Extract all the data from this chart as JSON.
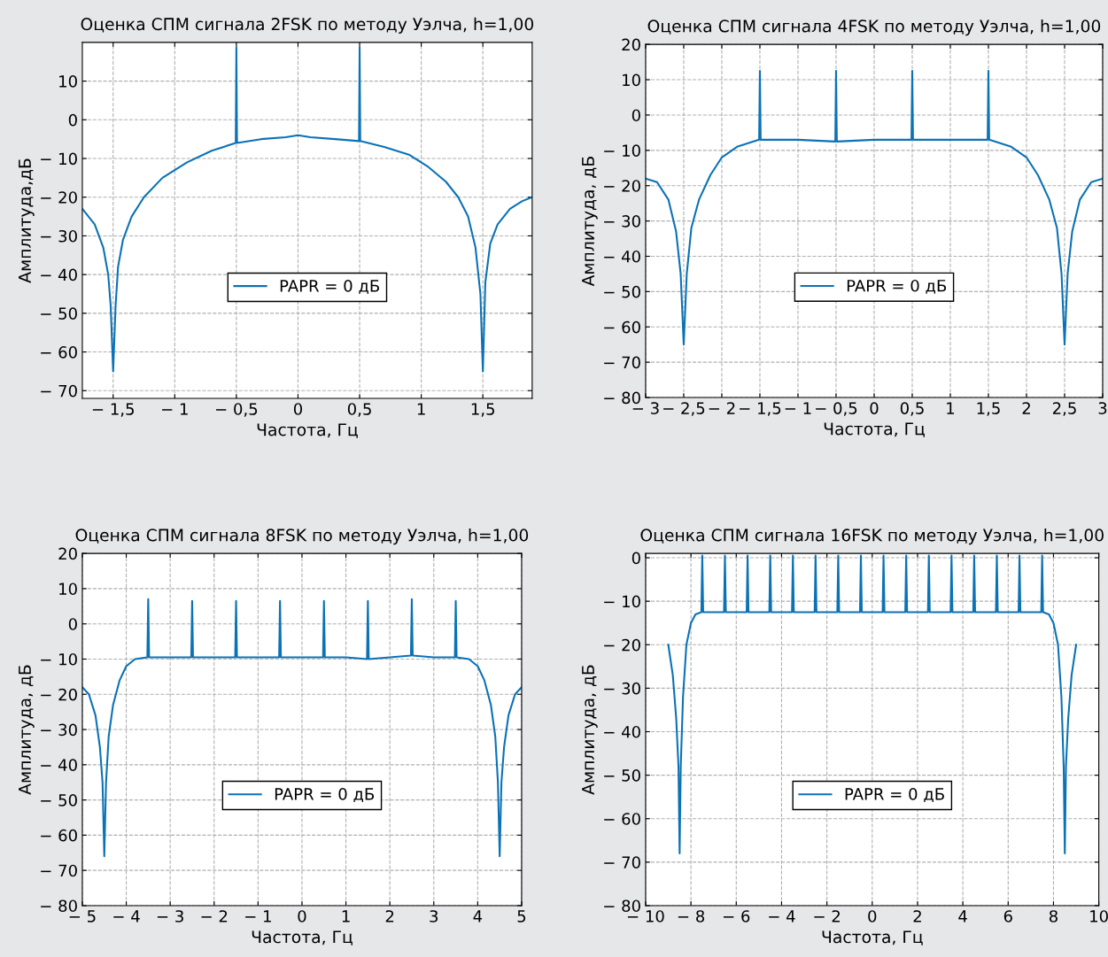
{
  "chart_data": [
    {
      "type": "line",
      "title": "Оценка СПМ сигнала 2FSK по методу Уэлча, h=1,00",
      "xlabel": "Частота, Гц",
      "ylabel": "Амплитуда,дБ",
      "grid": true,
      "legend": "bottom",
      "xlim": [
        -1.75,
        1.9
      ],
      "ylim": [
        -72,
        20
      ],
      "xticks": [
        {
          "value": -1.5,
          "label": "− 1,5"
        },
        {
          "value": -1,
          "label": "− 1"
        },
        {
          "value": -0.5,
          "label": "− 0,5"
        },
        0,
        {
          "value": 0.5,
          "label": "0,5"
        },
        1,
        {
          "value": 1.5,
          "label": "1,5"
        }
      ],
      "yticks": [
        {
          "value": -70,
          "label": "− 70"
        },
        {
          "value": -60,
          "label": "− 60"
        },
        {
          "value": -50,
          "label": "− 50"
        },
        {
          "value": -40,
          "label": "− 40"
        },
        {
          "value": -30,
          "label": "− 30"
        },
        {
          "value": -20,
          "label": "− 20"
        },
        {
          "value": -10,
          "label": "− 10"
        },
        0,
        10
      ],
      "series": [
        {
          "name": "PAPR = 0 дБ",
          "color": "#0a72b5",
          "x": [
            -1.75,
            -1.65,
            -1.58,
            -1.54,
            -1.52,
            -1.5,
            -1.48,
            -1.46,
            -1.42,
            -1.35,
            -1.25,
            -1.1,
            -0.9,
            -0.7,
            -0.505,
            -0.5,
            -0.495,
            -0.3,
            -0.1,
            0,
            0.1,
            0.3,
            0.495,
            0.5,
            0.505,
            0.7,
            0.9,
            1.05,
            1.2,
            1.3,
            1.38,
            1.44,
            1.48,
            1.5,
            1.52,
            1.56,
            1.62,
            1.72,
            1.82,
            1.9
          ],
          "values": [
            -23,
            -27,
            -33,
            -40,
            -48,
            -65,
            -48,
            -38,
            -31,
            -25,
            -20,
            -15,
            -11,
            -8,
            -6,
            18.7,
            -6,
            -5,
            -4.5,
            -4,
            -4.5,
            -5,
            -5.5,
            18.7,
            -5.5,
            -7,
            -9,
            -12,
            -16,
            -20,
            -25,
            -33,
            -45,
            -65,
            -42,
            -32,
            -27,
            -23,
            -21,
            -20
          ]
        }
      ]
    },
    {
      "type": "line",
      "title": "Оценка СПМ сигнала 4FSK по методу Уэлча, h=1,00",
      "xlabel": "Частота, Гц",
      "ylabel": "Амплитуда, дБ",
      "grid": true,
      "legend": "bottom",
      "xlim": [
        -3,
        3
      ],
      "ylim": [
        -80,
        20
      ],
      "xticks": [
        {
          "value": -3,
          "label": "− 3"
        },
        {
          "value": -2.5,
          "label": "− 2,5"
        },
        {
          "value": -2,
          "label": "− 2"
        },
        {
          "value": -1.5,
          "label": "− 1,5"
        },
        {
          "value": -1,
          "label": "− 1"
        },
        {
          "value": -0.5,
          "label": "− 0,5"
        },
        0,
        {
          "value": 0.5,
          "label": "0,5"
        },
        1,
        {
          "value": 1.5,
          "label": "1,5"
        },
        2,
        {
          "value": 2.5,
          "label": "2,5"
        },
        3
      ],
      "yticks": [
        {
          "value": -80,
          "label": "− 80"
        },
        {
          "value": -70,
          "label": "− 70"
        },
        {
          "value": -60,
          "label": "− 60"
        },
        {
          "value": -50,
          "label": "− 50"
        },
        {
          "value": -40,
          "label": "− 40"
        },
        {
          "value": -30,
          "label": "− 30"
        },
        {
          "value": -20,
          "label": "− 20"
        },
        {
          "value": -10,
          "label": "− 10"
        },
        0,
        10,
        20
      ],
      "series": [
        {
          "name": "PAPR = 0 дБ",
          "color": "#0a72b5",
          "x": [
            -3,
            -2.85,
            -2.7,
            -2.6,
            -2.54,
            -2.5,
            -2.46,
            -2.4,
            -2.3,
            -2.15,
            -2,
            -1.8,
            -1.51,
            -1.5,
            -1.49,
            -1,
            -0.51,
            -0.5,
            -0.49,
            0,
            0.49,
            0.5,
            0.51,
            1,
            1.49,
            1.5,
            1.51,
            1.8,
            2,
            2.15,
            2.3,
            2.4,
            2.46,
            2.5,
            2.54,
            2.6,
            2.7,
            2.85,
            3
          ],
          "values": [
            -18,
            -19,
            -24,
            -33,
            -45,
            -65,
            -45,
            -32,
            -24,
            -17,
            -12,
            -9,
            -7,
            12.5,
            -7,
            -7,
            -7.5,
            12.5,
            -7.5,
            -7,
            -7,
            12.5,
            -7,
            -7,
            -7,
            12.5,
            -7,
            -9,
            -12,
            -17,
            -24,
            -32,
            -45,
            -65,
            -45,
            -33,
            -24,
            -19,
            -18
          ]
        }
      ]
    },
    {
      "type": "line",
      "title": "Оценка СПМ сигнала 8FSK по методу Уэлча, h=1,00",
      "xlabel": "Частота, Гц",
      "ylabel": "Амплитуда, дБ",
      "grid": true,
      "legend": "bottom",
      "xlim": [
        -5,
        5
      ],
      "ylim": [
        -80,
        20
      ],
      "xticks": [
        {
          "value": -5,
          "label": "− 5"
        },
        {
          "value": -4,
          "label": "− 4"
        },
        {
          "value": -3,
          "label": "− 3"
        },
        {
          "value": -2,
          "label": "− 2"
        },
        {
          "value": -1,
          "label": "− 1"
        },
        0,
        1,
        2,
        3,
        4,
        5
      ],
      "yticks": [
        {
          "value": -80,
          "label": "− 80"
        },
        {
          "value": -70,
          "label": "− 70"
        },
        {
          "value": -60,
          "label": "− 60"
        },
        {
          "value": -50,
          "label": "− 50"
        },
        {
          "value": -40,
          "label": "− 40"
        },
        {
          "value": -30,
          "label": "− 30"
        },
        {
          "value": -20,
          "label": "− 20"
        },
        {
          "value": -10,
          "label": "− 10"
        },
        0,
        10,
        20
      ],
      "series": [
        {
          "name": "PAPR = 0 дБ",
          "color": "#0a72b5",
          "x": [
            -5,
            -4.85,
            -4.7,
            -4.6,
            -4.54,
            -4.5,
            -4.46,
            -4.4,
            -4.3,
            -4.15,
            -4,
            -3.8,
            -3.52,
            -3.5,
            -3.48,
            -3,
            -2.52,
            -2.5,
            -2.48,
            -2,
            -1.52,
            -1.5,
            -1.48,
            -1,
            -0.52,
            -0.5,
            -0.48,
            0,
            0.48,
            0.5,
            0.52,
            1,
            1.48,
            1.5,
            1.52,
            2,
            2.48,
            2.5,
            2.52,
            3,
            3.48,
            3.5,
            3.52,
            3.8,
            4,
            4.15,
            4.3,
            4.4,
            4.46,
            4.5,
            4.54,
            4.6,
            4.7,
            4.85,
            5
          ],
          "values": [
            -18,
            -20,
            -26,
            -35,
            -45,
            -66,
            -45,
            -32,
            -23,
            -16,
            -12,
            -10,
            -9.5,
            7,
            -9.5,
            -9.5,
            -9.5,
            6.5,
            -9.5,
            -9.5,
            -9.5,
            6.5,
            -9.5,
            -9.5,
            -9.5,
            6.5,
            -9.5,
            -9.5,
            -9.5,
            6.5,
            -9.5,
            -9.5,
            -10,
            6.5,
            -10,
            -9.5,
            -9,
            7,
            -9,
            -9.5,
            -9.5,
            6.5,
            -9.5,
            -10,
            -12,
            -16,
            -23,
            -32,
            -45,
            -66,
            -45,
            -35,
            -26,
            -20,
            -18
          ]
        }
      ]
    },
    {
      "type": "line",
      "title": "Оценка СПМ сигнала 16FSK по методу Уэлча, h=1,00",
      "xlabel": "Частота, Гц",
      "ylabel": "Амплитуда, дБ",
      "grid": true,
      "legend": "bottom",
      "xlim": [
        -10,
        10
      ],
      "ylim": [
        -80,
        1
      ],
      "xticks": [
        {
          "value": -10,
          "label": "− 10"
        },
        {
          "value": -8,
          "label": "− 8"
        },
        {
          "value": -6,
          "label": "− 6"
        },
        {
          "value": -4,
          "label": "− 4"
        },
        {
          "value": -2,
          "label": "− 2"
        },
        0,
        2,
        4,
        6,
        8,
        10
      ],
      "yticks": [
        {
          "value": -80,
          "label": "− 80"
        },
        {
          "value": -70,
          "label": "− 70"
        },
        {
          "value": -60,
          "label": "− 60"
        },
        {
          "value": -50,
          "label": "− 50"
        },
        {
          "value": -40,
          "label": "− 40"
        },
        {
          "value": -30,
          "label": "− 30"
        },
        {
          "value": -20,
          "label": "− 20"
        },
        {
          "value": -10,
          "label": "− 10"
        },
        0
      ],
      "series": [
        {
          "name": "PAPR = 0 дБ",
          "color": "#0a72b5",
          "x": [
            -9,
            -8.8,
            -8.65,
            -8.55,
            -8.5,
            -8.45,
            -8.35,
            -8.2,
            -8,
            -7.8,
            -7.54,
            -7.5,
            -7.46,
            -6.54,
            -6.5,
            -6.46,
            -5.54,
            -5.5,
            -5.46,
            -4.54,
            -4.5,
            -4.46,
            -3.54,
            -3.5,
            -3.46,
            -2.54,
            -2.5,
            -2.46,
            -1.54,
            -1.5,
            -1.46,
            -0.54,
            -0.5,
            -0.46,
            0.46,
            0.5,
            0.54,
            1.46,
            1.5,
            1.54,
            2.46,
            2.5,
            2.54,
            3.46,
            3.5,
            3.54,
            4.46,
            4.5,
            4.54,
            5.46,
            5.5,
            5.54,
            6.46,
            6.5,
            6.54,
            7.46,
            7.5,
            7.54,
            7.8,
            8,
            8.2,
            8.35,
            8.45,
            8.5,
            8.55,
            8.65,
            8.8,
            9
          ],
          "values": [
            -20,
            -27,
            -37,
            -48,
            -68,
            -48,
            -32,
            -20,
            -15,
            -13,
            -12.5,
            0.5,
            -12.5,
            -12.5,
            0.5,
            -12.5,
            -12.5,
            0.5,
            -12.5,
            -12.5,
            0.5,
            -12.5,
            -12.5,
            0.5,
            -12.5,
            -12.5,
            0.5,
            -12.5,
            -12.5,
            0.5,
            -12.5,
            -12.5,
            0.5,
            -12.5,
            -12.5,
            0.5,
            -12.5,
            -12.5,
            0.5,
            -12.5,
            -12.5,
            0.5,
            -12.5,
            -12.5,
            0.5,
            -12.5,
            -12.5,
            0.5,
            -12.5,
            -12.5,
            0.5,
            -12.5,
            -12.5,
            0.5,
            -12.5,
            -12.5,
            0.5,
            -12.5,
            -13,
            -15,
            -20,
            -32,
            -48,
            -68,
            -48,
            -37,
            -27,
            -20
          ]
        }
      ]
    }
  ]
}
